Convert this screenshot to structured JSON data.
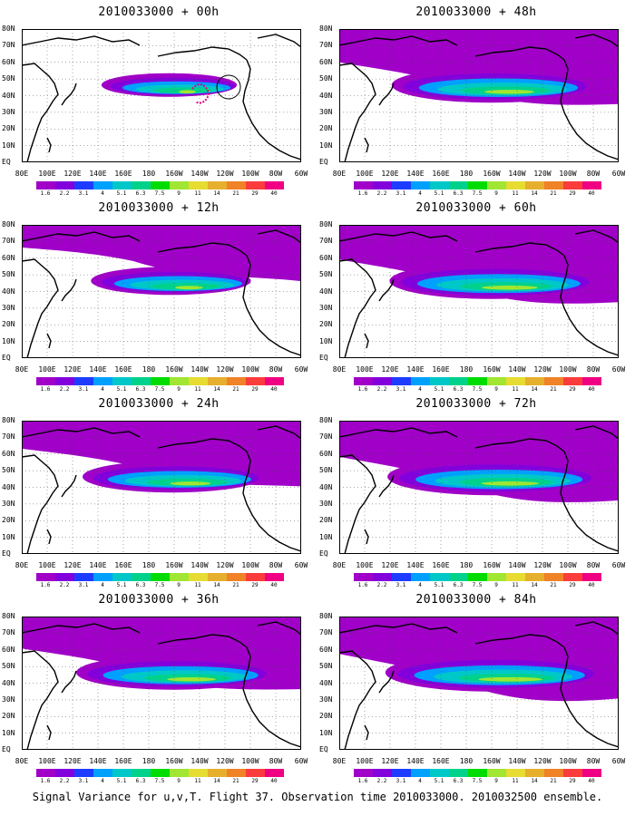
{
  "panels": [
    {
      "title": "2010033000 + 00h",
      "lead": "00h",
      "intensity": 0.25,
      "coverage": 0.1
    },
    {
      "title": "2010033000 + 12h",
      "lead": "12h",
      "intensity": 0.35,
      "coverage": 0.35
    },
    {
      "title": "2010033000 + 24h",
      "lead": "24h",
      "intensity": 0.45,
      "coverage": 0.55
    },
    {
      "title": "2010033000 + 36h",
      "lead": "36h",
      "intensity": 0.5,
      "coverage": 0.7
    },
    {
      "title": "2010033000 + 48h",
      "lead": "48h",
      "intensity": 0.5,
      "coverage": 0.75
    },
    {
      "title": "2010033000 + 60h",
      "lead": "60h",
      "intensity": 0.55,
      "coverage": 0.8
    },
    {
      "title": "2010033000 + 72h",
      "lead": "72h",
      "intensity": 0.55,
      "coverage": 0.85
    },
    {
      "title": "2010033000 + 84h",
      "lead": "84h",
      "intensity": 0.6,
      "coverage": 0.9
    }
  ],
  "lat_labels": [
    "80N",
    "70N",
    "60N",
    "50N",
    "40N",
    "30N",
    "20N",
    "10N",
    "EQ"
  ],
  "lon_labels": [
    "80E",
    "100E",
    "120E",
    "140E",
    "160E",
    "180",
    "160W",
    "140W",
    "120W",
    "100W",
    "80W",
    "60W"
  ],
  "colorbar": {
    "labels": [
      "1.6",
      "2.2",
      "3.1",
      "4",
      "5.1",
      "6.3",
      "7.5",
      "9",
      "11",
      "14",
      "21",
      "29",
      "40"
    ],
    "colors": [
      "#a000c8",
      "#8200dc",
      "#1e3cff",
      "#00a0ff",
      "#00c8c8",
      "#00d28c",
      "#00dc00",
      "#a0e632",
      "#e6dc32",
      "#e6af2d",
      "#f08228",
      "#fa3c3c",
      "#f00082"
    ]
  },
  "caption": "Signal Variance for u,v,T. Flight 37. Observation time 2010033000. 2010032500 ensemble."
}
